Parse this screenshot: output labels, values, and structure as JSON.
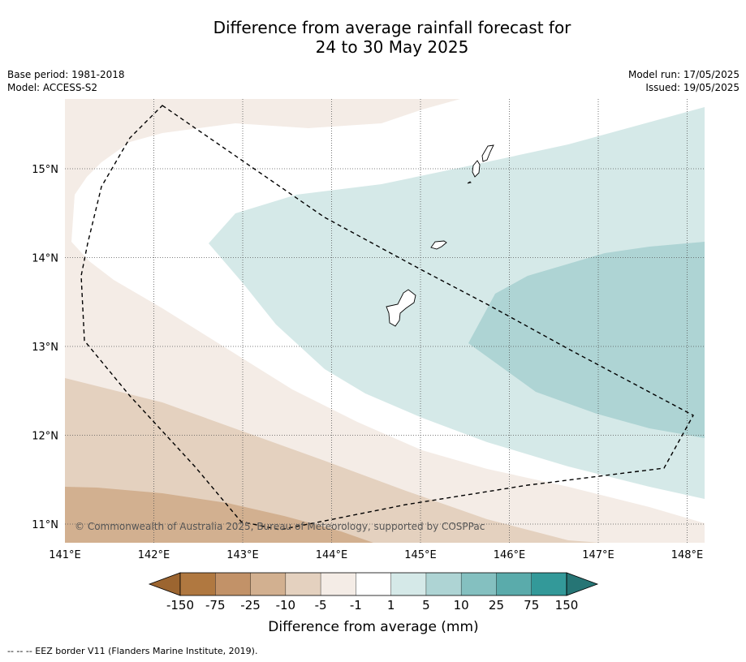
{
  "title": {
    "line1": "Difference from average rainfall forecast for",
    "line2": "24 to 30 May 2025"
  },
  "info_left": {
    "base_period": "Base period: 1981-2018",
    "model": "Model: ACCESS-S2"
  },
  "info_right": {
    "model_run": "Model run: 17/05/2025",
    "issued": "Issued: 19/05/2025"
  },
  "map": {
    "lon_labels": [
      "141°E",
      "142°E",
      "143°E",
      "144°E",
      "145°E",
      "146°E",
      "147°E",
      "148°E"
    ],
    "lat_labels": [
      "15°N",
      "14°N",
      "13°N",
      "12°N",
      "11°N"
    ],
    "copyright": "© Commonwealth of Australia 2025, Bureau of Meteorology, supported by COSPPac",
    "gridlines": "dotted"
  },
  "legend": {
    "title": "Difference from average (mm)",
    "tick_labels": [
      "-150",
      "-75",
      "-25",
      "-10",
      "-5",
      "-1",
      "1",
      "5",
      "10",
      "25",
      "75",
      "150"
    ],
    "colors": [
      "#9c6530",
      "#b07840",
      "#c29268",
      "#d2b090",
      "#e4d1bf",
      "#f4ece6",
      "#ffffff",
      "#d5e9e8",
      "#aed4d4",
      "#84c0c0",
      "#5aabab",
      "#339999",
      "#267575"
    ]
  },
  "footer": "--  --  -- EEZ border V11 (Flanders Marine Institute, 2019).",
  "icons": {
    "colorbar_arrows": "triangle"
  }
}
